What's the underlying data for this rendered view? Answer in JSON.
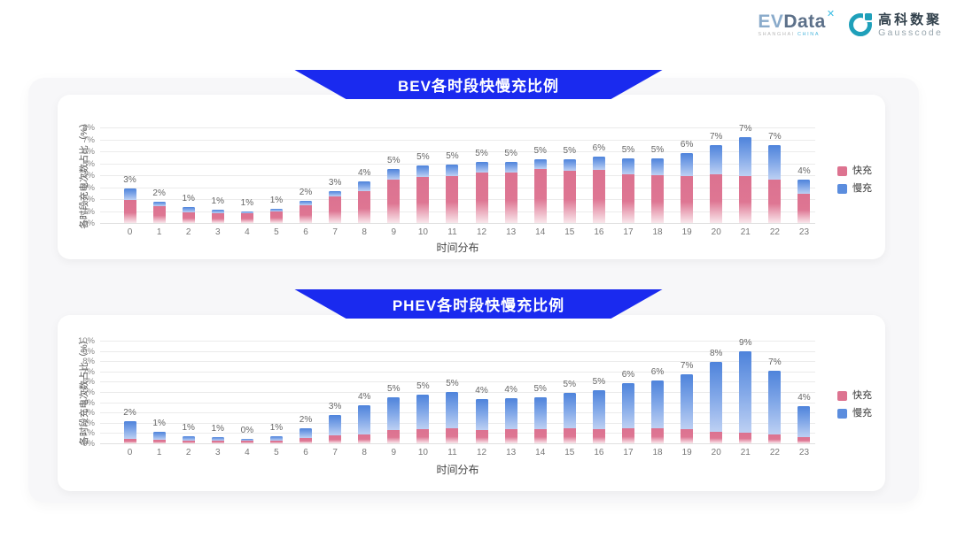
{
  "logo": {
    "evdata_part1": "EV",
    "evdata_part2": "Data",
    "evdata_mark": "✕",
    "evdata_sub_1": "SHANGHAI",
    "evdata_sub_2": "CHINA",
    "gausscode_cn": "高科数聚",
    "gausscode_en": "Gausscode"
  },
  "colors": {
    "banner_blue": "#1A2AEF",
    "fast_pink": "#DD7390",
    "slow_blue": "#5B8DDE",
    "gausscode_teal": "#1FA0BA"
  },
  "chart_data": [
    {
      "type": "bar",
      "stacked": true,
      "title": "BEV各时段快慢充比例",
      "xlabel": "时间分布",
      "ylabel": "各时段充电次数占比（%）",
      "ylim": [
        0,
        8
      ],
      "grid": true,
      "legend_position": "right",
      "yticks": [
        "0%",
        "1%",
        "2%",
        "3%",
        "4%",
        "5%",
        "6%",
        "7%",
        "8%"
      ],
      "categories": [
        "0",
        "1",
        "2",
        "3",
        "4",
        "5",
        "6",
        "7",
        "8",
        "9",
        "10",
        "11",
        "12",
        "13",
        "14",
        "15",
        "16",
        "17",
        "18",
        "19",
        "20",
        "21",
        "22",
        "23"
      ],
      "bar_labels": [
        "3%",
        "2%",
        "1%",
        "1%",
        "1%",
        "1%",
        "2%",
        "3%",
        "4%",
        "5%",
        "5%",
        "5%",
        "5%",
        "5%",
        "5%",
        "5%",
        "6%",
        "5%",
        "5%",
        "6%",
        "7%",
        "7%",
        "7%",
        "4%"
      ],
      "series": [
        {
          "name": "快充",
          "color": "#DD7390",
          "values": [
            1.9,
            1.4,
            0.9,
            0.85,
            0.85,
            0.95,
            1.5,
            2.2,
            2.7,
            3.6,
            3.85,
            3.9,
            4.2,
            4.2,
            4.5,
            4.4,
            4.45,
            4.05,
            4.0,
            3.95,
            4.1,
            3.9,
            3.6,
            2.45
          ]
        },
        {
          "name": "慢充",
          "color": "#5B8DDE",
          "values": [
            1.0,
            0.4,
            0.4,
            0.25,
            0.1,
            0.2,
            0.35,
            0.5,
            0.8,
            0.9,
            1.0,
            1.0,
            0.9,
            0.9,
            0.85,
            0.95,
            1.1,
            1.35,
            1.4,
            1.9,
            2.4,
            3.3,
            2.9,
            1.15
          ]
        }
      ]
    },
    {
      "type": "bar",
      "stacked": true,
      "title": "PHEV各时段快慢充比例",
      "xlabel": "时间分布",
      "ylabel": "各时段充电次数占比（%）",
      "ylim": [
        0,
        10
      ],
      "grid": true,
      "legend_position": "right",
      "yticks": [
        "0%",
        "1%",
        "2%",
        "3%",
        "4%",
        "5%",
        "6%",
        "7%",
        "8%",
        "9%",
        "10%"
      ],
      "categories": [
        "0",
        "1",
        "2",
        "3",
        "4",
        "5",
        "6",
        "7",
        "8",
        "9",
        "10",
        "11",
        "12",
        "13",
        "14",
        "15",
        "16",
        "17",
        "18",
        "19",
        "20",
        "21",
        "22",
        "23"
      ],
      "bar_labels": [
        "2%",
        "1%",
        "1%",
        "1%",
        "0%",
        "1%",
        "2%",
        "3%",
        "4%",
        "5%",
        "5%",
        "5%",
        "4%",
        "4%",
        "5%",
        "5%",
        "5%",
        "6%",
        "6%",
        "7%",
        "8%",
        "9%",
        "7%",
        "4%"
      ],
      "series": [
        {
          "name": "快充",
          "color": "#DD7390",
          "values": [
            0.4,
            0.35,
            0.3,
            0.3,
            0.25,
            0.3,
            0.55,
            0.8,
            0.9,
            1.3,
            1.35,
            1.45,
            1.3,
            1.35,
            1.35,
            1.45,
            1.4,
            1.45,
            1.5,
            1.4,
            1.15,
            1.05,
            0.9,
            0.6
          ]
        },
        {
          "name": "慢充",
          "color": "#5B8DDE",
          "values": [
            1.75,
            0.75,
            0.4,
            0.3,
            0.2,
            0.35,
            0.95,
            2.0,
            2.8,
            3.2,
            3.35,
            3.55,
            3.0,
            3.05,
            3.15,
            3.45,
            3.8,
            4.45,
            4.6,
            5.3,
            6.75,
            7.95,
            6.2,
            3.0
          ]
        }
      ]
    }
  ]
}
